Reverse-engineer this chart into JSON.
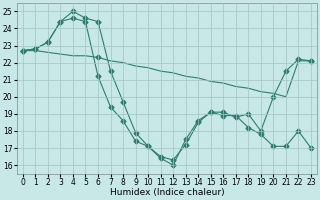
{
  "xlabel": "Humidex (Indice chaleur)",
  "xlim": [
    -0.5,
    23.5
  ],
  "ylim": [
    15.5,
    25.5
  ],
  "yticks": [
    16,
    17,
    18,
    19,
    20,
    21,
    22,
    23,
    24,
    25
  ],
  "xticks": [
    0,
    1,
    2,
    3,
    4,
    5,
    6,
    7,
    8,
    9,
    10,
    11,
    12,
    13,
    14,
    15,
    16,
    17,
    18,
    19,
    20,
    21,
    22,
    23
  ],
  "bg_color": "#c8e8e8",
  "grid_color": "#a0c4c4",
  "line_color": "#2e7d6e",
  "line1_x": [
    0,
    1,
    2,
    3,
    4,
    5,
    6,
    7,
    8,
    9,
    10,
    11,
    12,
    13,
    14,
    15,
    16,
    17,
    18,
    19,
    20,
    21,
    22,
    23
  ],
  "line1_y": [
    22.7,
    22.8,
    23.2,
    24.4,
    25.0,
    24.6,
    24.4,
    21.5,
    19.7,
    17.9,
    17.1,
    16.4,
    16.0,
    17.5,
    18.6,
    19.1,
    19.1,
    18.8,
    19.0,
    18.0,
    20.0,
    21.5,
    22.2,
    22.1
  ],
  "line2_x": [
    0,
    1,
    2,
    3,
    4,
    5,
    6,
    7,
    8,
    9,
    10,
    11,
    12,
    13,
    14,
    15,
    16,
    17,
    18,
    19,
    20,
    21,
    22,
    23
  ],
  "line2_y": [
    22.7,
    22.8,
    23.2,
    24.4,
    24.6,
    24.4,
    21.2,
    19.4,
    18.6,
    17.4,
    17.1,
    16.5,
    16.3,
    17.2,
    18.5,
    19.1,
    18.9,
    18.9,
    18.2,
    17.8,
    17.1,
    17.1,
    18.0,
    17.0
  ],
  "line3_x": [
    0,
    1,
    2,
    3,
    4,
    5,
    6,
    7,
    8,
    9,
    10,
    11,
    12,
    13,
    14,
    15,
    16,
    17,
    18,
    19,
    20,
    21,
    22,
    23
  ],
  "line3_y": [
    22.7,
    22.7,
    22.6,
    22.5,
    22.4,
    22.4,
    22.3,
    22.1,
    22.0,
    21.8,
    21.7,
    21.5,
    21.4,
    21.2,
    21.1,
    20.9,
    20.8,
    20.6,
    20.5,
    20.3,
    20.2,
    20.0,
    22.1,
    22.1
  ],
  "marker": "D",
  "markersize": 2.5,
  "linewidth": 0.8,
  "tick_fontsize": 5.5,
  "xlabel_fontsize": 6.5
}
